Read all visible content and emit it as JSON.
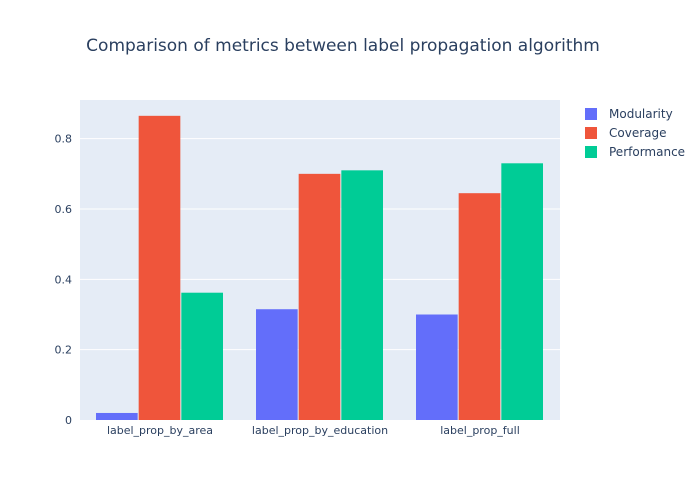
{
  "chart_data": {
    "type": "bar",
    "title": "Comparison of metrics between label propagation algorithm",
    "xlabel": "",
    "ylabel": "",
    "categories": [
      "label_prop_by_area",
      "label_prop_by_education",
      "label_prop_full"
    ],
    "series": [
      {
        "name": "Modularity",
        "values": [
          0.02,
          0.315,
          0.3
        ],
        "color": "#636efa"
      },
      {
        "name": "Coverage",
        "values": [
          0.865,
          0.7,
          0.645
        ],
        "color": "#ef553b"
      },
      {
        "name": "Performance",
        "values": [
          0.362,
          0.71,
          0.73
        ],
        "color": "#00cc96"
      }
    ],
    "ylim": [
      0,
      0.91
    ],
    "yticks": [
      0,
      0.2,
      0.4,
      0.6,
      0.8
    ],
    "ytick_labels": [
      "0",
      "0.2",
      "0.4",
      "0.6",
      "0.8"
    ],
    "grid": true,
    "legend_position": "top-right",
    "plot_background": "#e5ecf6",
    "grid_color": "#ffffff"
  }
}
